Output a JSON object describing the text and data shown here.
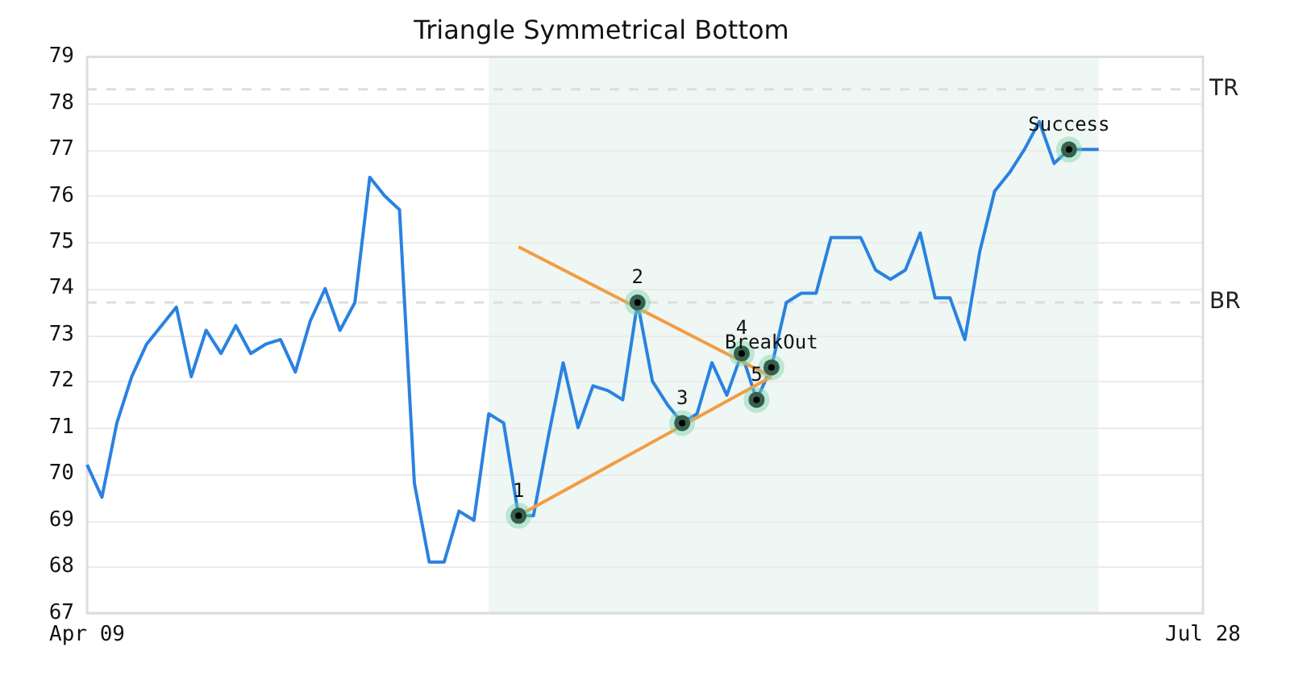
{
  "chart_data": {
    "type": "line",
    "title": "Triangle Symmetrical Bottom",
    "categories": [
      "Apr 09",
      null,
      null,
      null,
      null,
      null,
      null,
      null,
      null,
      null,
      null,
      null,
      null,
      null,
      null,
      null,
      null,
      null,
      null,
      null,
      null,
      null,
      null,
      null,
      null,
      null,
      null,
      null,
      null,
      null,
      null,
      null,
      null,
      null,
      null,
      null,
      null,
      null,
      null,
      null,
      null,
      null,
      null,
      null,
      null,
      null,
      null,
      null,
      null,
      null,
      null,
      null,
      null,
      null,
      null,
      null,
      null,
      null,
      null,
      null,
      null,
      null,
      null,
      null,
      null,
      null,
      null,
      null,
      null,
      null,
      null,
      null,
      null,
      null,
      null,
      "Jul 28"
    ],
    "ylim": [
      67,
      79
    ],
    "yticks": [
      67,
      68,
      69,
      70,
      71,
      72,
      73,
      74,
      75,
      76,
      77,
      78,
      79
    ],
    "grid": "y",
    "legend": false,
    "marker": "none",
    "line_style": "solid",
    "series": [
      {
        "color": "#2a82e0",
        "values": [
          70.2,
          69.5,
          71.1,
          72.1,
          72.8,
          73.2,
          73.6,
          72.1,
          73.1,
          72.6,
          73.2,
          72.6,
          72.8,
          72.9,
          72.2,
          73.3,
          74.0,
          73.1,
          73.7,
          76.4,
          76.0,
          75.7,
          69.8,
          68.1,
          68.1,
          69.2,
          69.0,
          71.3,
          71.1,
          69.1,
          69.1,
          70.8,
          72.4,
          71.0,
          71.9,
          71.8,
          71.6,
          73.7,
          72.0,
          71.5,
          71.1,
          71.3,
          72.4,
          71.7,
          72.6,
          71.6,
          72.3,
          73.7,
          73.9,
          73.9,
          75.1,
          75.1,
          75.1,
          74.4,
          74.2,
          74.4,
          75.2,
          73.8,
          73.8,
          72.9,
          74.8,
          76.1,
          76.5,
          77.0,
          77.6,
          76.7,
          77.0,
          77.0,
          77.0,
          null,
          null,
          null,
          null,
          null,
          null,
          null
        ]
      },
      {
        "color": "#f39c45",
        "values": [
          null,
          null,
          null,
          null,
          null,
          null,
          null,
          null,
          null,
          null,
          null,
          null,
          null,
          null,
          null,
          null,
          null,
          null,
          null,
          null,
          null,
          null,
          null,
          null,
          null,
          null,
          null,
          null,
          null,
          74.9,
          null,
          null,
          null,
          null,
          null,
          null,
          null,
          null,
          null,
          null,
          null,
          null,
          null,
          null,
          null,
          null,
          72.1,
          null,
          null,
          null,
          null,
          null,
          null,
          null,
          null,
          null,
          null,
          null,
          null,
          null,
          null,
          null,
          null,
          null,
          null,
          null,
          null,
          null,
          null,
          null,
          null,
          null,
          null,
          null,
          null,
          null
        ]
      },
      {
        "color": "#f39c45",
        "values": [
          null,
          null,
          null,
          null,
          null,
          null,
          null,
          null,
          null,
          null,
          null,
          null,
          null,
          null,
          null,
          null,
          null,
          null,
          null,
          null,
          null,
          null,
          null,
          null,
          null,
          null,
          null,
          null,
          null,
          69.1,
          null,
          null,
          null,
          null,
          null,
          null,
          null,
          null,
          null,
          null,
          null,
          null,
          null,
          null,
          null,
          null,
          72.1,
          null,
          null,
          null,
          null,
          null,
          null,
          null,
          null,
          null,
          null,
          null,
          null,
          null,
          null,
          null,
          null,
          null,
          null,
          null,
          null,
          null,
          null,
          null,
          null,
          null,
          null,
          null,
          null,
          null
        ]
      },
      {
        "type": "scatter",
        "marker": "circle",
        "color": "#000000",
        "values": [
          null,
          null,
          null,
          null,
          null,
          null,
          null,
          null,
          null,
          null,
          null,
          null,
          null,
          null,
          null,
          null,
          null,
          null,
          null,
          null,
          null,
          null,
          null,
          null,
          null,
          null,
          null,
          null,
          null,
          69.1,
          null,
          null,
          null,
          null,
          null,
          null,
          null,
          73.7,
          null,
          null,
          71.1,
          null,
          null,
          null,
          72.6,
          71.6,
          72.3,
          null,
          null,
          null,
          null,
          null,
          null,
          null,
          null,
          null,
          null,
          null,
          null,
          null,
          null,
          null,
          null,
          null,
          null,
          null,
          77.0,
          null,
          null,
          null,
          null,
          null,
          null,
          null,
          null,
          null
        ]
      }
    ],
    "annotations": [
      "1",
      "2",
      "3",
      "4",
      "5",
      "BreakOut",
      "Success"
    ],
    "ref_lines": [
      {
        "axis": "y",
        "value": 78.3,
        "label": "TR",
        "color": "#dddddd",
        "line_style": "dashed"
      },
      {
        "axis": "y",
        "value": 73.7,
        "label": "BR",
        "color": "#dddddd",
        "line_style": "dashed"
      }
    ]
  }
}
